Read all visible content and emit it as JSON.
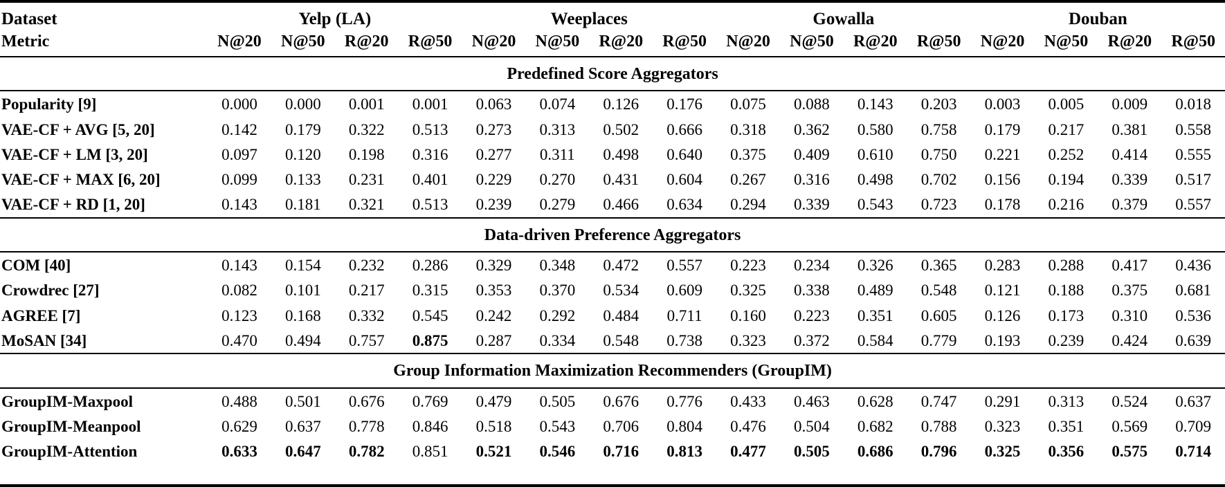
{
  "table": {
    "header": {
      "dataset_label": "Dataset",
      "metric_label": "Metric",
      "groups": [
        {
          "name": "Yelp (LA)",
          "metrics": [
            "N@20",
            "N@50",
            "R@20",
            "R@50"
          ]
        },
        {
          "name": "Weeplaces",
          "metrics": [
            "N@20",
            "N@50",
            "R@20",
            "R@50"
          ]
        },
        {
          "name": "Gowalla",
          "metrics": [
            "N@20",
            "N@50",
            "R@20",
            "R@50"
          ]
        },
        {
          "name": "Douban",
          "metrics": [
            "N@20",
            "N@50",
            "R@20",
            "R@50"
          ]
        }
      ]
    },
    "sections": [
      {
        "title": "Predefined Score Aggregators",
        "rows": [
          {
            "label": "Popularity [9]",
            "values": [
              "0.000",
              "0.000",
              "0.001",
              "0.001",
              "0.063",
              "0.074",
              "0.126",
              "0.176",
              "0.075",
              "0.088",
              "0.143",
              "0.203",
              "0.003",
              "0.005",
              "0.009",
              "0.018"
            ],
            "bold": []
          },
          {
            "label": "VAE-CF + AVG [5, 20]",
            "values": [
              "0.142",
              "0.179",
              "0.322",
              "0.513",
              "0.273",
              "0.313",
              "0.502",
              "0.666",
              "0.318",
              "0.362",
              "0.580",
              "0.758",
              "0.179",
              "0.217",
              "0.381",
              "0.558"
            ],
            "bold": []
          },
          {
            "label": "VAE-CF + LM [3, 20]",
            "values": [
              "0.097",
              "0.120",
              "0.198",
              "0.316",
              "0.277",
              "0.311",
              "0.498",
              "0.640",
              "0.375",
              "0.409",
              "0.610",
              "0.750",
              "0.221",
              "0.252",
              "0.414",
              "0.555"
            ],
            "bold": []
          },
          {
            "label": "VAE-CF + MAX [6, 20]",
            "values": [
              "0.099",
              "0.133",
              "0.231",
              "0.401",
              "0.229",
              "0.270",
              "0.431",
              "0.604",
              "0.267",
              "0.316",
              "0.498",
              "0.702",
              "0.156",
              "0.194",
              "0.339",
              "0.517"
            ],
            "bold": []
          },
          {
            "label": "VAE-CF + RD [1, 20]",
            "values": [
              "0.143",
              "0.181",
              "0.321",
              "0.513",
              "0.239",
              "0.279",
              "0.466",
              "0.634",
              "0.294",
              "0.339",
              "0.543",
              "0.723",
              "0.178",
              "0.216",
              "0.379",
              "0.557"
            ],
            "bold": []
          }
        ]
      },
      {
        "title": "Data-driven Preference Aggregators",
        "rows": [
          {
            "label": "COM [40]",
            "values": [
              "0.143",
              "0.154",
              "0.232",
              "0.286",
              "0.329",
              "0.348",
              "0.472",
              "0.557",
              "0.223",
              "0.234",
              "0.326",
              "0.365",
              "0.283",
              "0.288",
              "0.417",
              "0.436"
            ],
            "bold": []
          },
          {
            "label": "Crowdrec [27]",
            "values": [
              "0.082",
              "0.101",
              "0.217",
              "0.315",
              "0.353",
              "0.370",
              "0.534",
              "0.609",
              "0.325",
              "0.338",
              "0.489",
              "0.548",
              "0.121",
              "0.188",
              "0.375",
              "0.681"
            ],
            "bold": []
          },
          {
            "label": "AGREE [7]",
            "values": [
              "0.123",
              "0.168",
              "0.332",
              "0.545",
              "0.242",
              "0.292",
              "0.484",
              "0.711",
              "0.160",
              "0.223",
              "0.351",
              "0.605",
              "0.126",
              "0.173",
              "0.310",
              "0.536"
            ],
            "bold": []
          },
          {
            "label": "MoSAN [34]",
            "values": [
              "0.470",
              "0.494",
              "0.757",
              "0.875",
              "0.287",
              "0.334",
              "0.548",
              "0.738",
              "0.323",
              "0.372",
              "0.584",
              "0.779",
              "0.193",
              "0.239",
              "0.424",
              "0.639"
            ],
            "bold": [
              3
            ]
          }
        ]
      },
      {
        "title": "Group Information Maximization Recommenders (GroupIM)",
        "rows": [
          {
            "label": "GroupIM-Maxpool",
            "values": [
              "0.488",
              "0.501",
              "0.676",
              "0.769",
              "0.479",
              "0.505",
              "0.676",
              "0.776",
              "0.433",
              "0.463",
              "0.628",
              "0.747",
              "0.291",
              "0.313",
              "0.524",
              "0.637"
            ],
            "bold": []
          },
          {
            "label": "GroupIM-Meanpool",
            "values": [
              "0.629",
              "0.637",
              "0.778",
              "0.846",
              "0.518",
              "0.543",
              "0.706",
              "0.804",
              "0.476",
              "0.504",
              "0.682",
              "0.788",
              "0.323",
              "0.351",
              "0.569",
              "0.709"
            ],
            "bold": []
          },
          {
            "label": "GroupIM-Attention",
            "values": [
              "0.633",
              "0.647",
              "0.782",
              "0.851",
              "0.521",
              "0.546",
              "0.716",
              "0.813",
              "0.477",
              "0.505",
              "0.686",
              "0.796",
              "0.325",
              "0.356",
              "0.575",
              "0.714"
            ],
            "bold": [
              0,
              1,
              2,
              4,
              5,
              6,
              7,
              8,
              9,
              10,
              11,
              12,
              13,
              14,
              15
            ]
          }
        ]
      }
    ]
  }
}
